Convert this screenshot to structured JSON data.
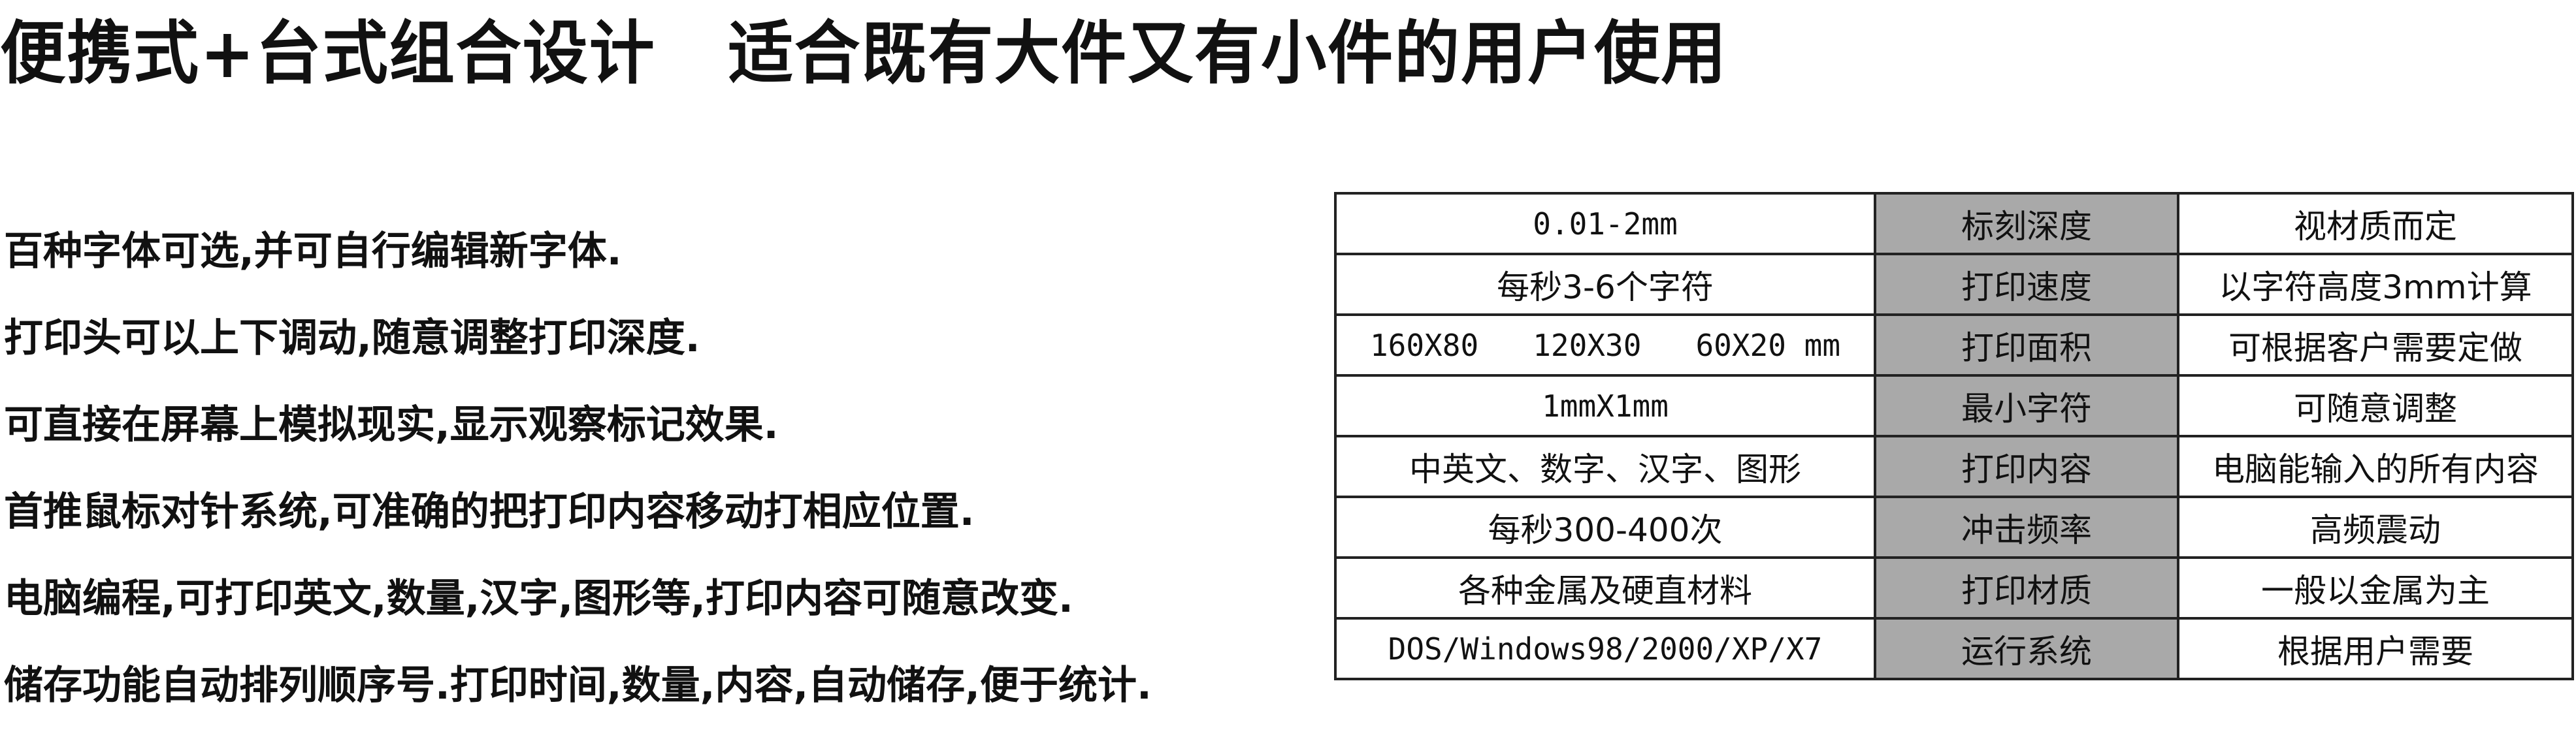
{
  "title": "便携式+台式组合设计   适合既有大件又有小件的用户使用",
  "features": [
    "百种字体可选,并可自行编辑新字体.",
    "打印头可以上下调动,随意调整打印深度.",
    "可直接在屏幕上模拟现实,显示观察标记效果.",
    "首推鼠标对针系统,可准确的把打印内容移动打相应位置.",
    "电脑编程,可打印英文,数量,汉字,图形等,打印内容可随意改变.",
    "储存功能自动排列顺序号.打印时间,数量,内容,自动储存,便于统计."
  ],
  "spec_table": {
    "header_bg_color": "#a9a9a9",
    "rows": [
      {
        "value": "0.01-2mm",
        "label": "标刻深度",
        "note": "视材质而定"
      },
      {
        "value": "每秒3-6个字符",
        "label": "打印速度",
        "note": "以字符高度3mm计算"
      },
      {
        "value": "160X80   120X30   60X20 mm",
        "label": "打印面积",
        "note": "可根据客户需要定做"
      },
      {
        "value": "1mmX1mm",
        "label": "最小字符",
        "note": "可随意调整"
      },
      {
        "value": "中英文、数字、汉字、图形",
        "label": "打印内容",
        "note": "电脑能输入的所有内容"
      },
      {
        "value": "每秒300-400次",
        "label": "冲击频率",
        "note": "高频震动"
      },
      {
        "value": "各种金属及硬直材料",
        "label": "打印材质",
        "note": "一般以金属为主"
      },
      {
        "value": "DOS/Windows98/2000/XP/X7",
        "label": "运行系统",
        "note": "根据用户需要"
      }
    ]
  }
}
